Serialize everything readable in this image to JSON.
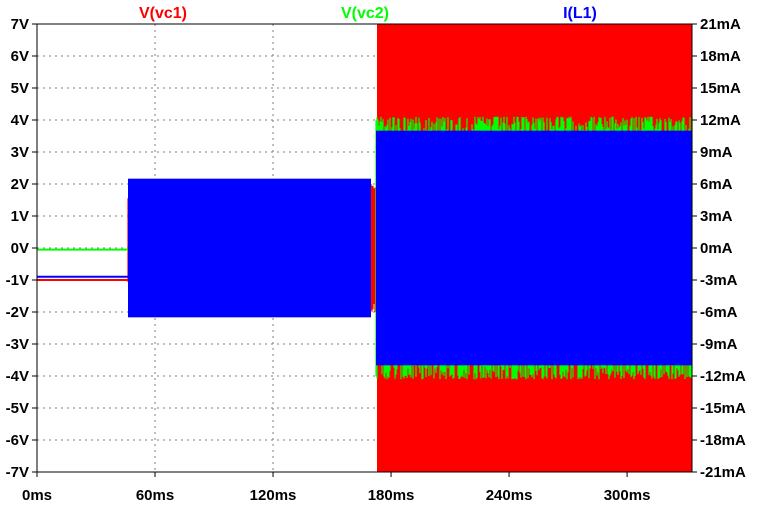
{
  "chart_data": {
    "type": "line",
    "title": "",
    "grid": true,
    "legend": [
      "V(vc1)",
      "V(vc2)",
      "I(L1)"
    ],
    "legend_placement": "top",
    "xlabel": "",
    "x_ticks": [
      "0ms",
      "60ms",
      "120ms",
      "180ms",
      "240ms",
      "300ms"
    ],
    "xlim_ms": [
      0,
      333
    ],
    "left_axis": {
      "label": "",
      "unit": "V",
      "ylim": [
        -7,
        7
      ],
      "ticks": [
        "7V",
        "6V",
        "5V",
        "4V",
        "3V",
        "2V",
        "1V",
        "0V",
        "-1V",
        "-2V",
        "-3V",
        "-4V",
        "-5V",
        "-6V",
        "-7V"
      ]
    },
    "right_axis": {
      "label": "",
      "unit": "mA",
      "ylim": [
        -21,
        21
      ],
      "ticks": [
        "21mA",
        "18mA",
        "15mA",
        "12mA",
        "9mA",
        "6mA",
        "3mA",
        "0mA",
        "-3mA",
        "-6mA",
        "-9mA",
        "-12mA",
        "-15mA",
        "-18mA",
        "-21mA"
      ]
    },
    "series": [
      {
        "name": "V(vc1)",
        "axis": "left",
        "color": "#ff0000",
        "segments": [
          {
            "type": "dc",
            "t0": 0,
            "t1": 46.5,
            "value": -1.0
          },
          {
            "type": "osc",
            "t0": 46.5,
            "t1": 170,
            "lo": -2.0,
            "hi": 2.0,
            "core_lo": -0.9,
            "core_hi": 1.1
          },
          {
            "type": "osc",
            "t0": 170,
            "t1": 173,
            "lo": -2.0,
            "hi": 2.0
          },
          {
            "type": "osc",
            "t0": 173,
            "t1": 333,
            "lo": -7.0,
            "hi": 7.0
          }
        ]
      },
      {
        "name": "V(vc2)",
        "axis": "left",
        "color": "#00ff00",
        "segments": [
          {
            "type": "dc",
            "t0": 0,
            "t1": 46.5,
            "value": -0.05
          },
          {
            "type": "osc",
            "t0": 172.5,
            "t1": 333,
            "lo": -4.1,
            "hi": 4.1
          }
        ]
      },
      {
        "name": "I(L1)",
        "axis": "right",
        "color": "#0000ff",
        "unit": "mA",
        "segments": [
          {
            "type": "dc",
            "t0": 0,
            "t1": 46.5,
            "value": -2.7
          },
          {
            "type": "osc",
            "t0": 46.5,
            "t1": 170,
            "lo": -6.5,
            "hi": 6.5
          },
          {
            "type": "osc",
            "t0": 172.5,
            "t1": 333,
            "lo": -11.0,
            "hi": 11.0
          }
        ]
      }
    ]
  }
}
